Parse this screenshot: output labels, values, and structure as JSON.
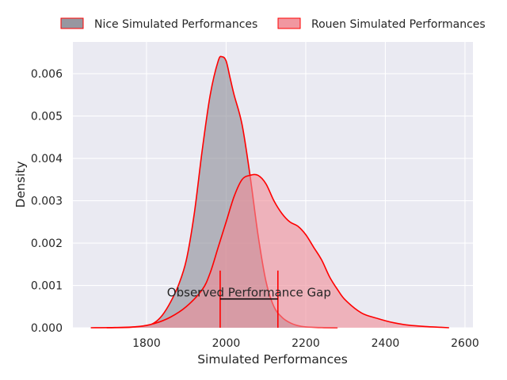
{
  "chart_data": {
    "type": "area",
    "xlabel": "Simulated Performances",
    "ylabel": "Density",
    "xlim": [
      1615,
      2620
    ],
    "ylim": [
      0,
      0.00675
    ],
    "x_ticks": [
      1800,
      2000,
      2200,
      2400,
      2600
    ],
    "x_tick_labels": [
      "1800",
      "2000",
      "2200",
      "2400",
      "2600"
    ],
    "y_ticks": [
      0,
      0.001,
      0.002,
      0.003,
      0.004,
      0.005,
      0.006
    ],
    "y_tick_labels": [
      "0.000",
      "0.001",
      "0.002",
      "0.003",
      "0.004",
      "0.005",
      "0.006"
    ],
    "grid": true,
    "legend_position": "top, outside plot",
    "series": [
      {
        "name": "Nice Simulated Performances",
        "fill_color": "#8c8c96",
        "line_color": "#ff0000",
        "x": [
          1700,
          1760,
          1800,
          1820,
          1840,
          1860,
          1880,
          1900,
          1920,
          1940,
          1960,
          1980,
          1990,
          2000,
          2010,
          2020,
          2040,
          2060,
          2080,
          2100,
          2120,
          2140,
          2160,
          2180,
          2200,
          2240,
          2280
        ],
        "y": [
          0,
          1e-05,
          5e-05,
          0.00012,
          0.0003,
          0.0006,
          0.001,
          0.0016,
          0.0027,
          0.0042,
          0.0055,
          0.0063,
          0.0064,
          0.0063,
          0.0059,
          0.0055,
          0.0048,
          0.0036,
          0.0022,
          0.0011,
          0.0005,
          0.00025,
          0.00012,
          5e-05,
          2e-05,
          5e-06,
          0
        ]
      },
      {
        "name": "Rouen Simulated Performances",
        "fill_color": "#f08c96",
        "line_color": "#ff0000",
        "x": [
          1660,
          1720,
          1780,
          1820,
          1860,
          1900,
          1940,
          1960,
          1980,
          2000,
          2020,
          2040,
          2060,
          2080,
          2100,
          2120,
          2140,
          2160,
          2180,
          2200,
          2220,
          2240,
          2260,
          2280,
          2300,
          2340,
          2380,
          2420,
          2460,
          2500,
          2540,
          2560
        ],
        "y": [
          0,
          5e-06,
          3e-05,
          0.0001,
          0.00025,
          0.0005,
          0.0009,
          0.0013,
          0.0019,
          0.0025,
          0.0031,
          0.0035,
          0.0036,
          0.0036,
          0.0034,
          0.003,
          0.0027,
          0.0025,
          0.0024,
          0.0022,
          0.0019,
          0.0016,
          0.0012,
          0.0009,
          0.00065,
          0.00035,
          0.00022,
          0.00012,
          6e-05,
          3e-05,
          1e-05,
          0
        ]
      }
    ],
    "annotation": {
      "text": "Observed Performance Gap",
      "x_start": 1985,
      "x_end": 2130,
      "y_line": 0.00068,
      "y_marker_top": 0.00135
    }
  }
}
